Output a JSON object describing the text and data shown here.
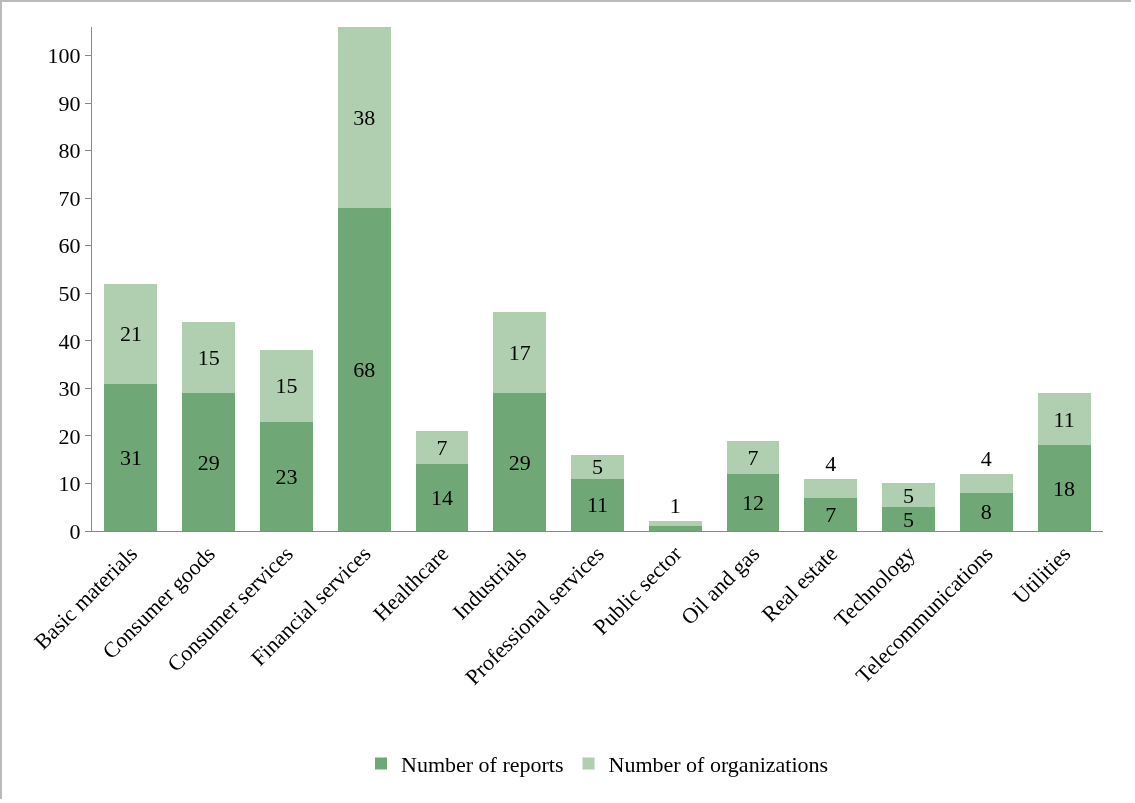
{
  "chart_data": {
    "type": "bar",
    "stacked": true,
    "categories": [
      "Basic materials",
      "Consumer goods",
      "Consumer services",
      "Financial services",
      "Healthcare",
      "Industrials",
      "Professional services",
      "Public sector",
      "Oil and gas",
      "Real estate",
      "Technology",
      "Telecommunications",
      "Utilities"
    ],
    "series": [
      {
        "name": "Number of reports",
        "color": "#70a777",
        "values": [
          31,
          29,
          23,
          68,
          14,
          29,
          11,
          1,
          12,
          7,
          5,
          8,
          18
        ],
        "value_labels": [
          "31",
          "29",
          "23",
          "68",
          "14",
          "29",
          "11",
          null,
          "12",
          "7",
          "5",
          "8",
          "18"
        ]
      },
      {
        "name": "Number of organizations",
        "color": "#afcfb0",
        "values": [
          21,
          15,
          15,
          38,
          7,
          17,
          5,
          1,
          7,
          4,
          5,
          4,
          11
        ],
        "value_labels": [
          "21",
          "15",
          "15",
          "38",
          "7",
          "17",
          "5",
          "1",
          "7",
          "4",
          "5",
          "4",
          "11"
        ]
      }
    ],
    "ylim": [
      0,
      106
    ],
    "yticks": [
      0,
      10,
      20,
      30,
      40,
      50,
      60,
      70,
      80,
      90,
      100
    ],
    "grid": false,
    "legend": "bottom"
  }
}
